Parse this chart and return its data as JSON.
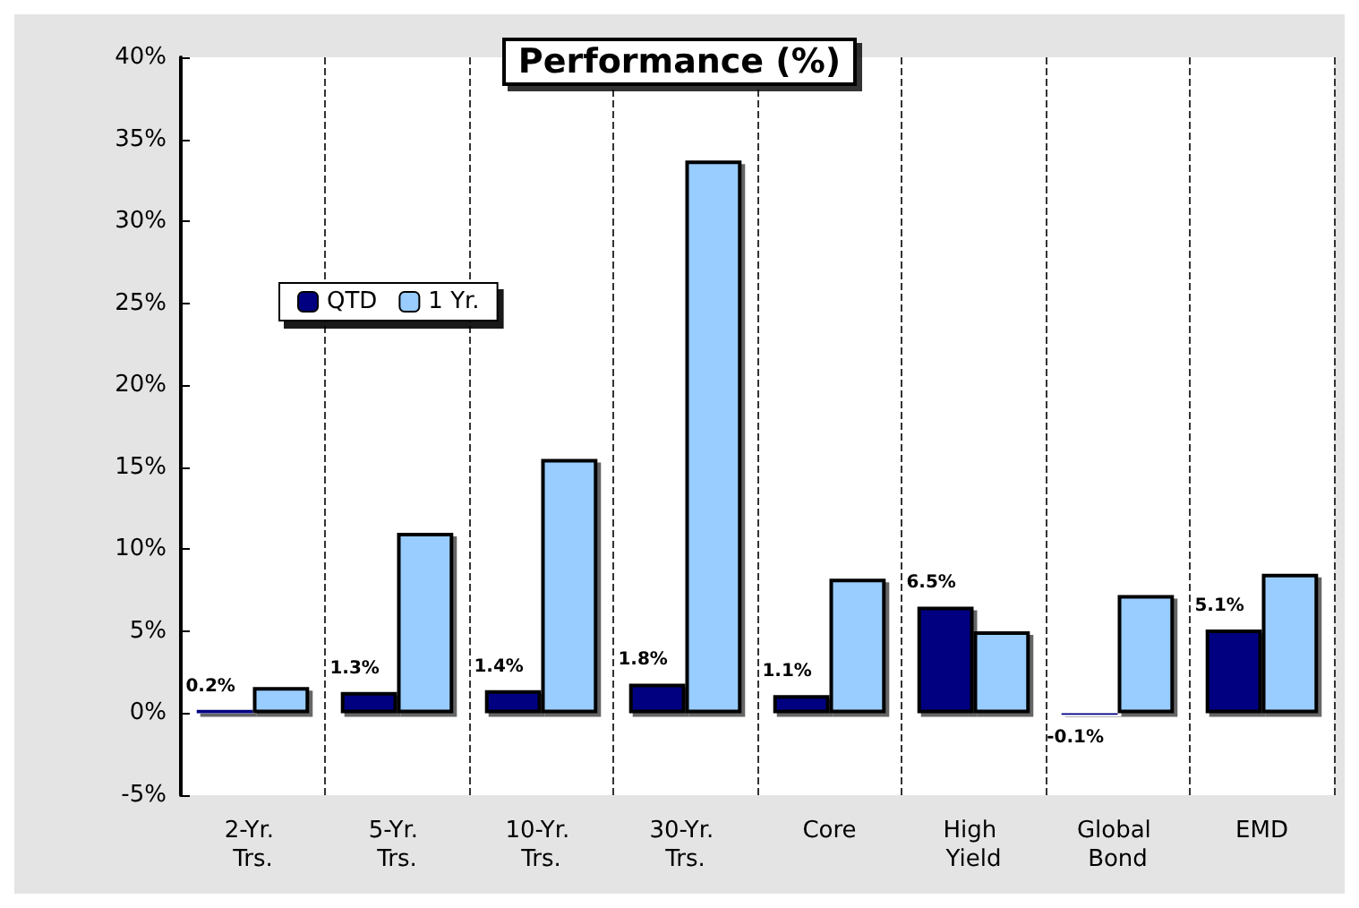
{
  "chart_data": {
    "type": "bar",
    "title": "Performance (%)",
    "categories": [
      "2-Yr. Trs.",
      "5-Yr. Trs.",
      "10-Yr. Trs.",
      "30-Yr. Trs.",
      "Core",
      "High Yield",
      "Global Bond",
      "EMD"
    ],
    "series": [
      {
        "name": "QTD",
        "color": "#000080",
        "values": [
          0.2,
          1.3,
          1.4,
          1.8,
          1.1,
          6.5,
          -0.1,
          5.1
        ],
        "value_labels": [
          "0.2%",
          "1.3%",
          "1.4%",
          "1.8%",
          "1.1%",
          "6.5%",
          "-0.1%",
          "5.1%"
        ]
      },
      {
        "name": "1 Yr.",
        "color": "#99ccff",
        "values": [
          1.6,
          11.0,
          15.5,
          33.7,
          8.2,
          5.0,
          7.2,
          8.5
        ]
      }
    ],
    "ylim": [
      -5,
      40
    ],
    "yticks": [
      {
        "value": -5,
        "label": "-5%"
      },
      {
        "value": 0,
        "label": "0%"
      },
      {
        "value": 5,
        "label": "5%"
      },
      {
        "value": 10,
        "label": "10%"
      },
      {
        "value": 15,
        "label": "15%"
      },
      {
        "value": 20,
        "label": "20%"
      },
      {
        "value": 25,
        "label": "25%"
      },
      {
        "value": 30,
        "label": "30%"
      },
      {
        "value": 35,
        "label": "35%"
      },
      {
        "value": 40,
        "label": "40%"
      }
    ],
    "grid": "x",
    "legend": "top left"
  }
}
